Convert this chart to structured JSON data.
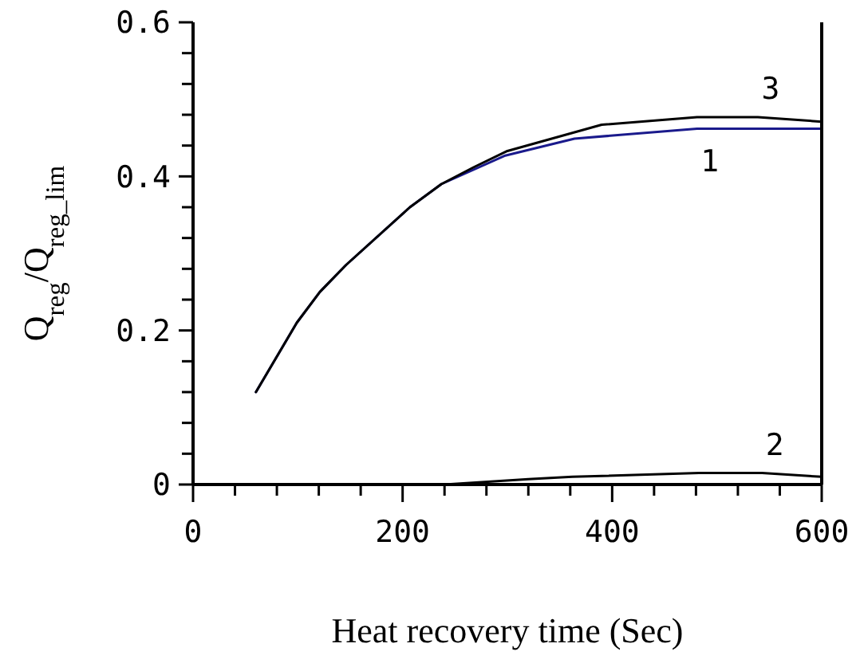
{
  "chart_data": {
    "type": "line",
    "xlabel": "Heat recovery time (Sec)",
    "ylabel": "Q$_{reg}$/Q$_{reg_lim}$",
    "xlim": [
      0,
      600
    ],
    "ylim": [
      0,
      0.6
    ],
    "xticks": [
      0,
      {
        "value": 40,
        "label": null
      },
      {
        "value": 80,
        "label": null
      },
      {
        "value": 120,
        "label": null
      },
      {
        "value": 160,
        "label": null
      },
      200,
      {
        "value": 240,
        "label": null
      },
      {
        "value": 280,
        "label": null
      },
      {
        "value": 320,
        "label": null
      },
      {
        "value": 360,
        "label": null
      },
      400,
      {
        "value": 440,
        "label": null
      },
      {
        "value": 480,
        "label": null
      },
      {
        "value": 520,
        "label": null
      },
      {
        "value": 560,
        "label": null
      },
      600
    ],
    "yticks": [
      0,
      {
        "value": 0.04,
        "label": null
      },
      {
        "value": 0.08,
        "label": null
      },
      {
        "value": 0.12,
        "label": null
      },
      {
        "value": 0.16,
        "label": null
      },
      0.2,
      {
        "value": 0.24,
        "label": null
      },
      {
        "value": 0.28,
        "label": null
      },
      {
        "value": 0.32,
        "label": null
      },
      {
        "value": 0.36,
        "label": null
      },
      0.4,
      {
        "value": 0.44,
        "label": null
      },
      {
        "value": 0.48,
        "label": null
      },
      {
        "value": 0.52,
        "label": null
      },
      {
        "value": 0.56,
        "label": null
      },
      0.6
    ],
    "grid": false,
    "marker": "none",
    "line_style": "solid",
    "series": [
      {
        "name": "1",
        "color": "#1a1a8c",
        "x": [
          60,
          99,
          121,
          146,
          207,
          237,
          298,
          364,
          481,
          600
        ],
        "values": [
          0.12,
          0.21,
          0.25,
          0.285,
          0.36,
          0.39,
          0.427,
          0.449,
          0.462,
          0.462
        ]
      },
      {
        "name": "2",
        "color": "#000000",
        "x": [
          60,
          240,
          320,
          362,
          483,
          543,
          600
        ],
        "values": [
          0,
          0,
          0.007,
          0.01,
          0.015,
          0.015,
          0.01
        ]
      },
      {
        "name": "3",
        "color": "#000000",
        "x": [
          60,
          99,
          121,
          146,
          207,
          237,
          268,
          300,
          390,
          481,
          539,
          600
        ],
        "values": [
          0.12,
          0.21,
          0.25,
          0.285,
          0.36,
          0.39,
          0.412,
          0.433,
          0.467,
          0.477,
          0.477,
          0.471
        ]
      }
    ]
  }
}
